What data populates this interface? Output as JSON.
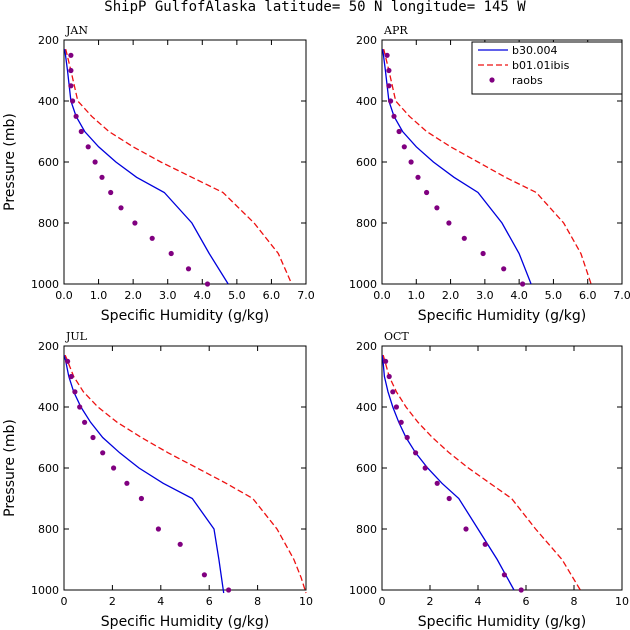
{
  "title": "ShipP GulfofAlaska  latitude= 50 N longitude= 145 W",
  "colors": {
    "b30": "#0000dd",
    "b01": "#ee1111",
    "raobs": "#800080"
  },
  "legend": {
    "b30": "b30.004",
    "b01": "b01.01ibis",
    "raobs": "raobs"
  },
  "chart_data": [
    {
      "type": "line",
      "title": "JAN",
      "xlabel": "Specific Humidity (g/kg)",
      "ylabel": "Pressure (mb)",
      "xlim": [
        0,
        7
      ],
      "ylim": [
        1000,
        200
      ],
      "xticks": [
        "0.0",
        "1.0",
        "2.0",
        "3.0",
        "4.0",
        "5.0",
        "6.0",
        "7.0"
      ],
      "yticks": [
        "200",
        "400",
        "600",
        "800",
        "1000"
      ],
      "series": [
        {
          "name": "b30.004",
          "x": [
            0.02,
            0.1,
            0.2,
            0.35,
            0.6,
            1.0,
            1.5,
            2.1,
            2.9,
            3.7,
            4.2,
            4.75
          ],
          "y": [
            230,
            300,
            400,
            450,
            500,
            550,
            600,
            650,
            700,
            800,
            900,
            1000
          ]
        },
        {
          "name": "b01.01ibis",
          "x": [
            0.05,
            0.2,
            0.4,
            0.8,
            1.3,
            2.0,
            2.8,
            3.7,
            4.6,
            5.5,
            6.2,
            6.55
          ],
          "y": [
            230,
            300,
            400,
            450,
            500,
            550,
            600,
            650,
            700,
            800,
            900,
            990
          ]
        },
        {
          "name": "raobs",
          "x": [
            0.2,
            0.2,
            0.2,
            0.25,
            0.35,
            0.5,
            0.7,
            0.9,
            1.1,
            1.35,
            1.65,
            2.05,
            2.55,
            3.1,
            3.6,
            4.15
          ],
          "y": [
            250,
            300,
            350,
            400,
            450,
            500,
            550,
            600,
            650,
            700,
            750,
            800,
            850,
            900,
            950,
            1000
          ]
        }
      ]
    },
    {
      "type": "line",
      "title": "APR",
      "xlabel": "Specific Humidity (g/kg)",
      "ylabel": "",
      "xlim": [
        0,
        7
      ],
      "ylim": [
        1000,
        200
      ],
      "xticks": [
        "0.0",
        "1.0",
        "2.0",
        "3.0",
        "4.0",
        "5.0",
        "6.0",
        "7.0"
      ],
      "yticks": [
        "200",
        "400",
        "600",
        "800",
        "1000"
      ],
      "series": [
        {
          "name": "b30.004",
          "x": [
            0.02,
            0.1,
            0.2,
            0.35,
            0.6,
            1.0,
            1.5,
            2.1,
            2.8,
            3.5,
            4.0,
            4.35
          ],
          "y": [
            230,
            300,
            400,
            450,
            500,
            550,
            600,
            650,
            700,
            800,
            900,
            1000
          ]
        },
        {
          "name": "b01.01ibis",
          "x": [
            0.05,
            0.2,
            0.4,
            0.8,
            1.3,
            2.0,
            2.8,
            3.6,
            4.5,
            5.3,
            5.8,
            6.1
          ],
          "y": [
            230,
            300,
            400,
            450,
            500,
            550,
            600,
            650,
            700,
            800,
            900,
            1000
          ]
        },
        {
          "name": "raobs",
          "x": [
            0.15,
            0.2,
            0.2,
            0.25,
            0.35,
            0.5,
            0.65,
            0.85,
            1.05,
            1.3,
            1.6,
            1.95,
            2.4,
            2.95,
            3.55,
            4.1
          ],
          "y": [
            250,
            300,
            350,
            400,
            450,
            500,
            550,
            600,
            650,
            700,
            750,
            800,
            850,
            900,
            950,
            1000
          ]
        }
      ]
    },
    {
      "type": "line",
      "title": "JUL",
      "xlabel": "Specific Humidity (g/kg)",
      "ylabel": "Pressure (mb)",
      "xlim": [
        0,
        10
      ],
      "ylim": [
        1000,
        200
      ],
      "xticks": [
        "0",
        "2",
        "4",
        "6",
        "8",
        "10"
      ],
      "yticks": [
        "200",
        "400",
        "600",
        "800",
        "1000"
      ],
      "series": [
        {
          "name": "b30.004",
          "x": [
            0.02,
            0.2,
            0.4,
            0.7,
            1.1,
            1.6,
            2.3,
            3.1,
            4.1,
            5.3,
            6.2,
            6.4,
            6.6
          ],
          "y": [
            230,
            300,
            350,
            400,
            450,
            500,
            550,
            600,
            650,
            700,
            800,
            900,
            1010
          ]
        },
        {
          "name": "b01.01ibis",
          "x": [
            0.05,
            0.4,
            0.8,
            1.4,
            2.2,
            3.2,
            4.3,
            5.5,
            6.7,
            7.8,
            8.8,
            9.5,
            9.8,
            10.0
          ],
          "y": [
            230,
            300,
            350,
            400,
            450,
            500,
            550,
            600,
            650,
            700,
            800,
            900,
            960,
            1010
          ]
        },
        {
          "name": "raobs",
          "x": [
            0.15,
            0.3,
            0.45,
            0.65,
            0.85,
            1.2,
            1.6,
            2.05,
            2.6,
            3.2,
            3.9,
            4.8,
            5.8,
            6.8
          ],
          "y": [
            250,
            300,
            350,
            400,
            450,
            500,
            550,
            600,
            650,
            700,
            800,
            850,
            950,
            1000
          ]
        }
      ]
    },
    {
      "type": "line",
      "title": "OCT",
      "xlabel": "Specific Humidity (g/kg)",
      "ylabel": "",
      "xlim": [
        0,
        10
      ],
      "ylim": [
        1000,
        200
      ],
      "xticks": [
        "0",
        "2",
        "4",
        "6",
        "8",
        "10"
      ],
      "yticks": [
        "200",
        "400",
        "600",
        "800",
        "1000"
      ],
      "series": [
        {
          "name": "b30.004",
          "x": [
            0.02,
            0.1,
            0.25,
            0.45,
            0.7,
            1.0,
            1.4,
            1.9,
            2.5,
            3.2,
            4.0,
            4.8,
            5.5
          ],
          "y": [
            230,
            300,
            350,
            400,
            450,
            500,
            550,
            600,
            650,
            700,
            800,
            900,
            1000
          ]
        },
        {
          "name": "b01.01ibis",
          "x": [
            0.05,
            0.3,
            0.6,
            1.0,
            1.5,
            2.1,
            2.8,
            3.6,
            4.5,
            5.4,
            6.4,
            7.5,
            8.3
          ],
          "y": [
            230,
            300,
            350,
            400,
            450,
            500,
            550,
            600,
            650,
            700,
            800,
            900,
            1005
          ]
        },
        {
          "name": "raobs",
          "x": [
            0.15,
            0.3,
            0.45,
            0.6,
            0.8,
            1.05,
            1.4,
            1.8,
            2.3,
            2.8,
            3.5,
            4.3,
            5.1,
            5.8
          ],
          "y": [
            250,
            300,
            350,
            400,
            450,
            500,
            550,
            600,
            650,
            700,
            800,
            850,
            950,
            1000
          ]
        }
      ]
    }
  ]
}
